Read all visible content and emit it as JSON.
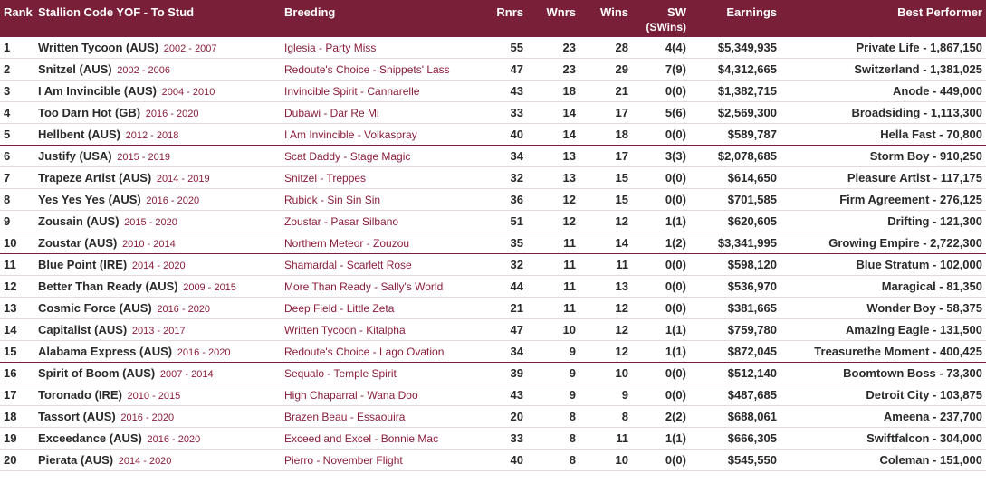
{
  "headers": {
    "rank": "Rank",
    "stallion": "Stallion Code YOF - To Stud",
    "breeding": "Breeding",
    "rnrs": "Rnrs",
    "wnrs": "Wnrs",
    "wins": "Wins",
    "sw": "SW",
    "sw_sub": "(SWins)",
    "earnings": "Earnings",
    "best": "Best Performer"
  },
  "rows": [
    {
      "rank": "1",
      "stallion": "Written Tycoon (AUS)",
      "yof": "2002 - 2007",
      "breeding": "Iglesia - Party Miss",
      "rnrs": "55",
      "wnrs": "23",
      "wins": "28",
      "sw": "4(4)",
      "earnings": "$5,349,935",
      "best": "Private Life - 1,867,150"
    },
    {
      "rank": "2",
      "stallion": "Snitzel (AUS)",
      "yof": "2002 - 2006",
      "breeding": "Redoute's Choice - Snippets' Lass",
      "rnrs": "47",
      "wnrs": "23",
      "wins": "29",
      "sw": "7(9)",
      "earnings": "$4,312,665",
      "best": "Switzerland - 1,381,025"
    },
    {
      "rank": "3",
      "stallion": "I Am Invincible (AUS)",
      "yof": "2004 - 2010",
      "breeding": "Invincible Spirit - Cannarelle",
      "rnrs": "43",
      "wnrs": "18",
      "wins": "21",
      "sw": "0(0)",
      "earnings": "$1,382,715",
      "best": "Anode - 449,000"
    },
    {
      "rank": "4",
      "stallion": "Too Darn Hot (GB)",
      "yof": "2016 - 2020",
      "breeding": "Dubawi - Dar Re Mi",
      "rnrs": "33",
      "wnrs": "14",
      "wins": "17",
      "sw": "5(6)",
      "earnings": "$2,569,300",
      "best": "Broadsiding - 1,113,300"
    },
    {
      "rank": "5",
      "stallion": "Hellbent (AUS)",
      "yof": "2012 - 2018",
      "breeding": "I Am Invincible - Volkaspray",
      "rnrs": "40",
      "wnrs": "14",
      "wins": "18",
      "sw": "0(0)",
      "earnings": "$589,787",
      "best": "Hella Fast - 70,800"
    },
    {
      "rank": "6",
      "stallion": "Justify (USA)",
      "yof": "2015 - 2019",
      "breeding": "Scat Daddy - Stage Magic",
      "rnrs": "34",
      "wnrs": "13",
      "wins": "17",
      "sw": "3(3)",
      "earnings": "$2,078,685",
      "best": "Storm Boy - 910,250"
    },
    {
      "rank": "7",
      "stallion": "Trapeze Artist (AUS)",
      "yof": "2014 - 2019",
      "breeding": "Snitzel - Treppes",
      "rnrs": "32",
      "wnrs": "13",
      "wins": "15",
      "sw": "0(0)",
      "earnings": "$614,650",
      "best": "Pleasure Artist - 117,175"
    },
    {
      "rank": "8",
      "stallion": "Yes Yes Yes (AUS)",
      "yof": "2016 - 2020",
      "breeding": "Rubick - Sin Sin Sin",
      "rnrs": "36",
      "wnrs": "12",
      "wins": "15",
      "sw": "0(0)",
      "earnings": "$701,585",
      "best": "Firm Agreement - 276,125"
    },
    {
      "rank": "9",
      "stallion": "Zousain (AUS)",
      "yof": "2015 - 2020",
      "breeding": "Zoustar - Pasar Silbano",
      "rnrs": "51",
      "wnrs": "12",
      "wins": "12",
      "sw": "1(1)",
      "earnings": "$620,605",
      "best": "Drifting - 121,300"
    },
    {
      "rank": "10",
      "stallion": "Zoustar (AUS)",
      "yof": "2010 - 2014",
      "breeding": "Northern Meteor - Zouzou",
      "rnrs": "35",
      "wnrs": "11",
      "wins": "14",
      "sw": "1(2)",
      "earnings": "$3,341,995",
      "best": "Growing Empire - 2,722,300"
    },
    {
      "rank": "11",
      "stallion": "Blue Point (IRE)",
      "yof": "2014 - 2020",
      "breeding": "Shamardal - Scarlett Rose",
      "rnrs": "32",
      "wnrs": "11",
      "wins": "11",
      "sw": "0(0)",
      "earnings": "$598,120",
      "best": "Blue Stratum - 102,000"
    },
    {
      "rank": "12",
      "stallion": "Better Than Ready (AUS)",
      "yof": "2009 - 2015",
      "breeding": "More Than Ready - Sally's World",
      "rnrs": "44",
      "wnrs": "11",
      "wins": "13",
      "sw": "0(0)",
      "earnings": "$536,970",
      "best": "Maragical - 81,350"
    },
    {
      "rank": "13",
      "stallion": "Cosmic Force (AUS)",
      "yof": "2016 - 2020",
      "breeding": "Deep Field - Little Zeta",
      "rnrs": "21",
      "wnrs": "11",
      "wins": "12",
      "sw": "0(0)",
      "earnings": "$381,665",
      "best": "Wonder Boy - 58,375"
    },
    {
      "rank": "14",
      "stallion": "Capitalist (AUS)",
      "yof": "2013 - 2017",
      "breeding": "Written Tycoon - Kitalpha",
      "rnrs": "47",
      "wnrs": "10",
      "wins": "12",
      "sw": "1(1)",
      "earnings": "$759,780",
      "best": "Amazing Eagle - 131,500"
    },
    {
      "rank": "15",
      "stallion": "Alabama Express (AUS)",
      "yof": "2016 - 2020",
      "breeding": "Redoute's Choice - Lago Ovation",
      "rnrs": "34",
      "wnrs": "9",
      "wins": "12",
      "sw": "1(1)",
      "earnings": "$872,045",
      "best": "Treasurethe Moment - 400,425"
    },
    {
      "rank": "16",
      "stallion": "Spirit of Boom (AUS)",
      "yof": "2007 - 2014",
      "breeding": "Sequalo - Temple Spirit",
      "rnrs": "39",
      "wnrs": "9",
      "wins": "10",
      "sw": "0(0)",
      "earnings": "$512,140",
      "best": "Boomtown Boss - 73,300"
    },
    {
      "rank": "17",
      "stallion": "Toronado (IRE)",
      "yof": "2010 - 2015",
      "breeding": "High Chaparral - Wana Doo",
      "rnrs": "43",
      "wnrs": "9",
      "wins": "9",
      "sw": "0(0)",
      "earnings": "$487,685",
      "best": "Detroit City - 103,875"
    },
    {
      "rank": "18",
      "stallion": "Tassort (AUS)",
      "yof": "2016 - 2020",
      "breeding": "Brazen Beau - Essaouira",
      "rnrs": "20",
      "wnrs": "8",
      "wins": "8",
      "sw": "2(2)",
      "earnings": "$688,061",
      "best": "Ameena - 237,700"
    },
    {
      "rank": "19",
      "stallion": "Exceedance (AUS)",
      "yof": "2016 - 2020",
      "breeding": "Exceed and Excel - Bonnie Mac",
      "rnrs": "33",
      "wnrs": "8",
      "wins": "11",
      "sw": "1(1)",
      "earnings": "$666,305",
      "best": "Swiftfalcon - 304,000"
    },
    {
      "rank": "20",
      "stallion": "Pierata (AUS)",
      "yof": "2014 - 2020",
      "breeding": "Pierro - November Flight",
      "rnrs": "40",
      "wnrs": "8",
      "wins": "10",
      "sw": "0(0)",
      "earnings": "$545,550",
      "best": "Coleman - 151,000"
    }
  ],
  "separators": [
    5,
    10,
    15
  ],
  "style": {
    "header_bg": "#7a1f38",
    "header_fg": "#ffffff",
    "accent": "#8a1d3a",
    "row_border": "#e9d6dc",
    "sep_border": "#7a1f38",
    "text": "#2a2a2a",
    "font_size_body": 13,
    "font_size_breeding": 12,
    "font_size_yof": 11
  }
}
